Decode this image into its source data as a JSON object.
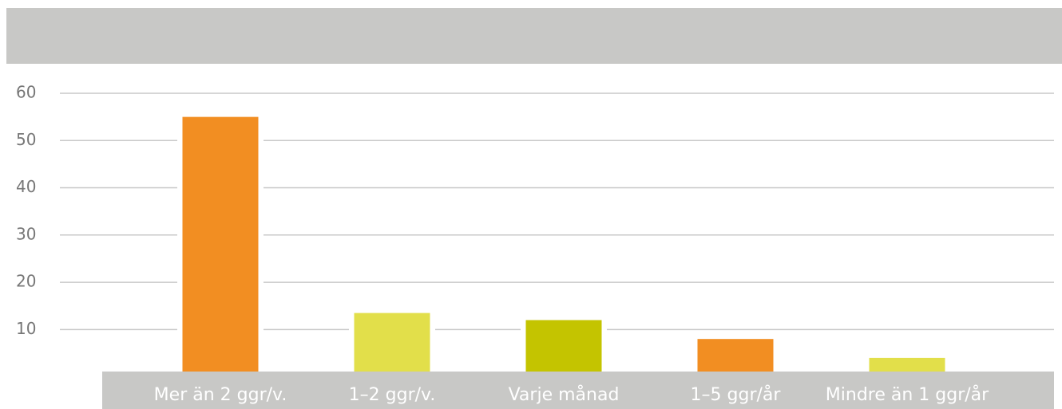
{
  "chart_data": {
    "type": "bar",
    "categories": [
      "Mer än 2 ggr/v.",
      "1–2 ggr/v.",
      "Varje månad",
      "1–5 ggr/år",
      "Mindre än 1 ggr/år"
    ],
    "values": [
      55,
      13.5,
      12,
      8,
      4
    ],
    "colors": [
      "#f28e22",
      "#e2df4a",
      "#c4c400",
      "#f28e22",
      "#e2df4a"
    ],
    "ylim": [
      0,
      60
    ],
    "yticks": [
      10,
      20,
      30,
      40,
      50,
      60
    ],
    "grid": true
  }
}
